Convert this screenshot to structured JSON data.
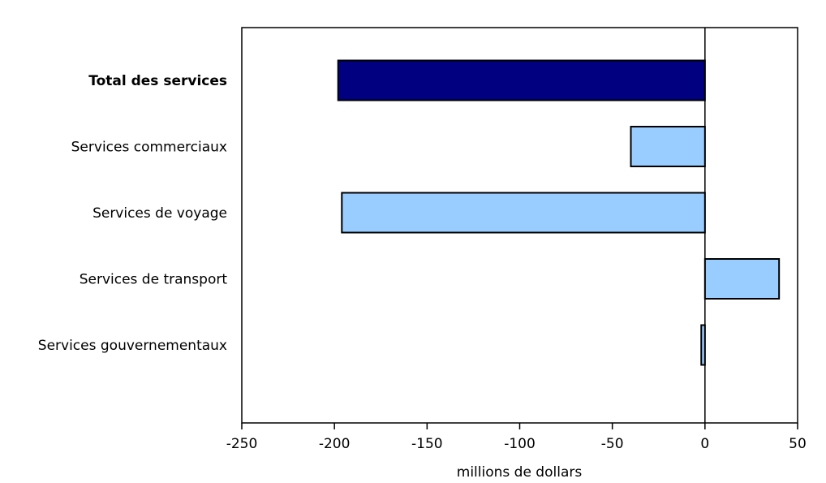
{
  "chart_data": {
    "type": "bar",
    "orientation": "horizontal",
    "categories": [
      "Total des services",
      "Services commerciaux",
      "Services de voyage",
      "Services de transport",
      "Services gouvernementaux"
    ],
    "values": [
      -198,
      -40,
      -196,
      40,
      -2
    ],
    "bold_categories": [
      "Total des services"
    ],
    "colors": [
      "#000080",
      "#99ccff",
      "#99ccff",
      "#99ccff",
      "#99ccff"
    ],
    "xlabel": "millions de dollars",
    "xlim": [
      -250,
      50
    ],
    "xticks": [
      -250,
      -200,
      -150,
      -100,
      -50,
      0,
      50
    ],
    "xtick_labels": [
      "-250",
      "-200",
      "-150",
      "-100",
      "-50",
      "0",
      "50"
    ],
    "grid": false
  }
}
